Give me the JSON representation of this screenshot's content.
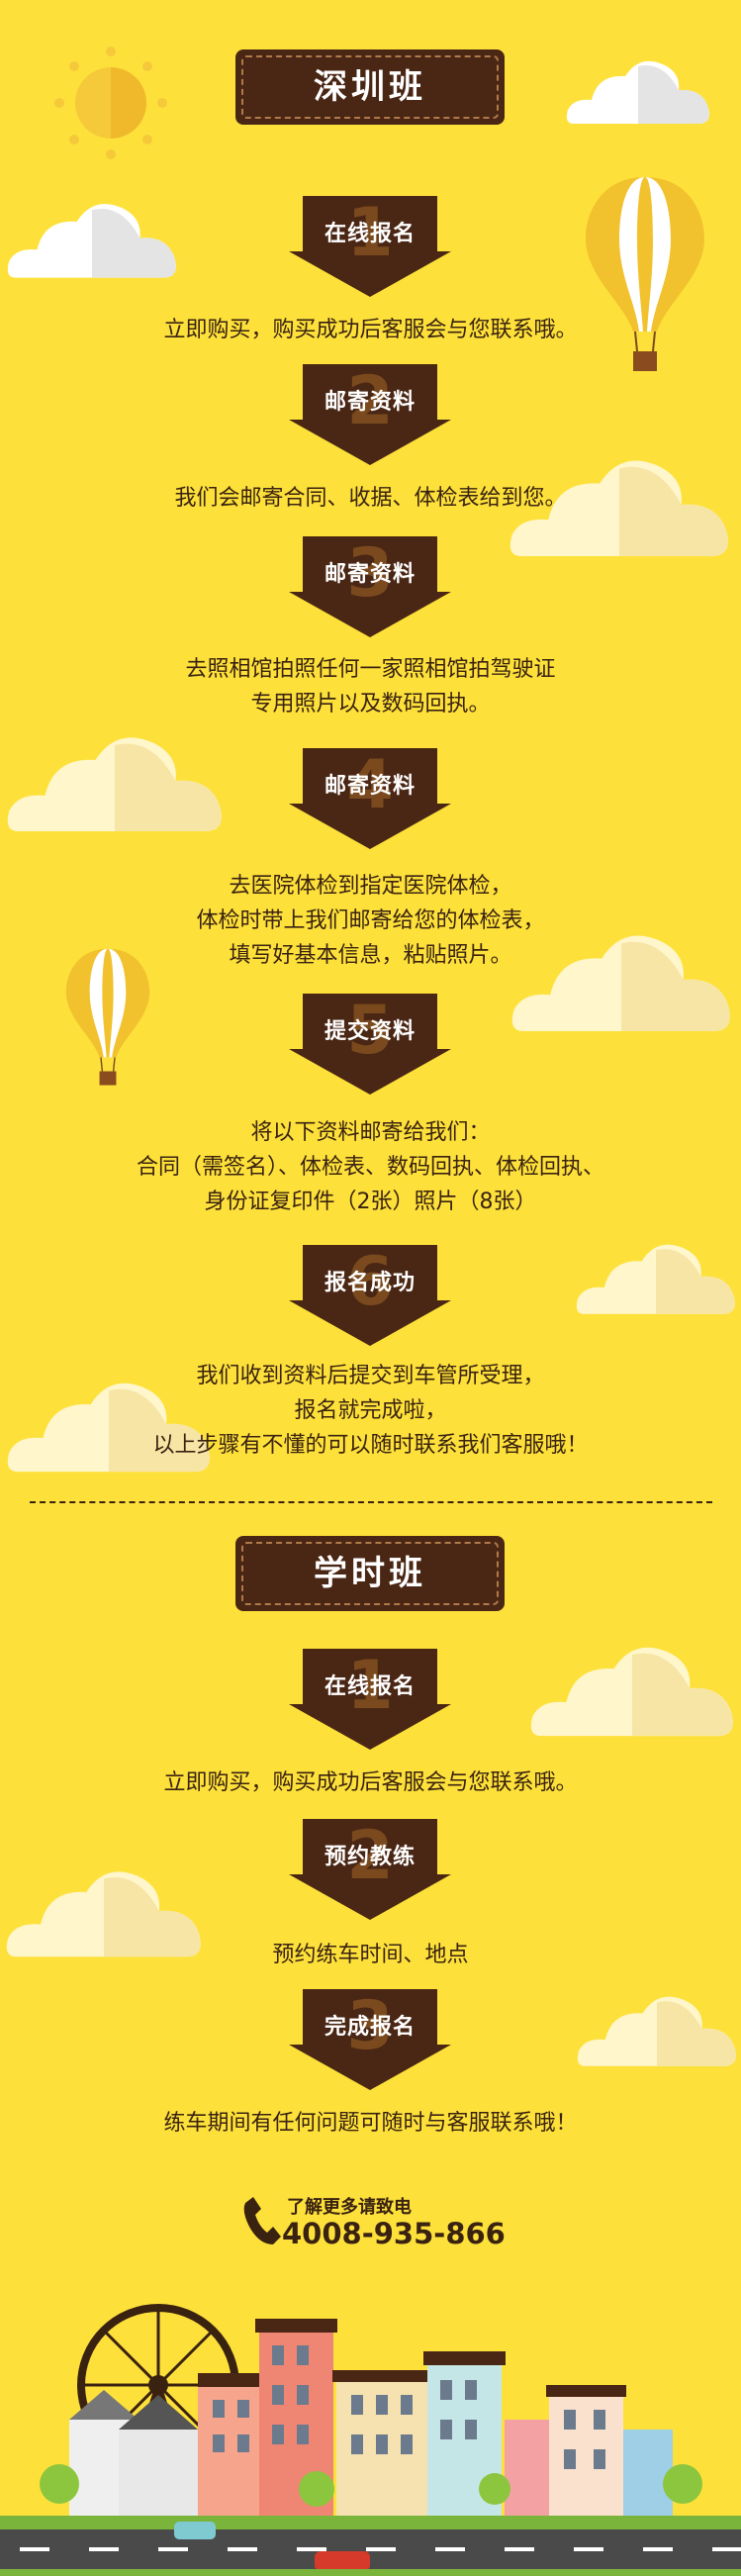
{
  "sections": [
    {
      "title": "深圳班",
      "steps": [
        {
          "num": "1",
          "label": "在线报名",
          "desc": [
            "立即购买，购买成功后客服会与您联系哦。"
          ]
        },
        {
          "num": "2",
          "label": "邮寄资料",
          "desc": [
            "我们会邮寄合同、收据、体检表给到您。"
          ]
        },
        {
          "num": "3",
          "label": "邮寄资料",
          "desc": [
            "去照相馆拍照任何一家照相馆拍驾驶证",
            "专用照片以及数码回执。"
          ]
        },
        {
          "num": "4",
          "label": "邮寄资料",
          "desc": [
            "去医院体检到指定医院体检，",
            "体检时带上我们邮寄给您的体检表，",
            "填写好基本信息，粘贴照片。"
          ]
        },
        {
          "num": "5",
          "label": "提交资料",
          "desc": [
            "将以下资料邮寄给我们：",
            "合同（需签名）、体检表、数码回执、体检回执、",
            "身份证复印件（2张）照片（8张）"
          ]
        },
        {
          "num": "6",
          "label": "报名成功",
          "desc": [
            "我们收到资料后提交到车管所受理，",
            "报名就完成啦，",
            "以上步骤有不懂的可以随时联系我们客服哦！"
          ]
        }
      ]
    },
    {
      "title": "学时班",
      "steps": [
        {
          "num": "1",
          "label": "在线报名",
          "desc": [
            "立即购买，购买成功后客服会与您联系哦。"
          ]
        },
        {
          "num": "2",
          "label": "预约教练",
          "desc": [
            "预约练车时间、地点"
          ]
        },
        {
          "num": "3",
          "label": "完成报名",
          "desc": [
            "练车期间有任何问题可随时与客服联系哦！"
          ]
        }
      ]
    }
  ],
  "contact": {
    "label": "了解更多请致电",
    "phone": "4008-935-866",
    "icon": "phone-icon"
  },
  "colors": {
    "background": "#fde13a",
    "brown": "#4a2614",
    "number": "#7a4a1e",
    "text": "#3a2211",
    "cloud": "#fff3c4",
    "balloon": "#f2c12e"
  }
}
